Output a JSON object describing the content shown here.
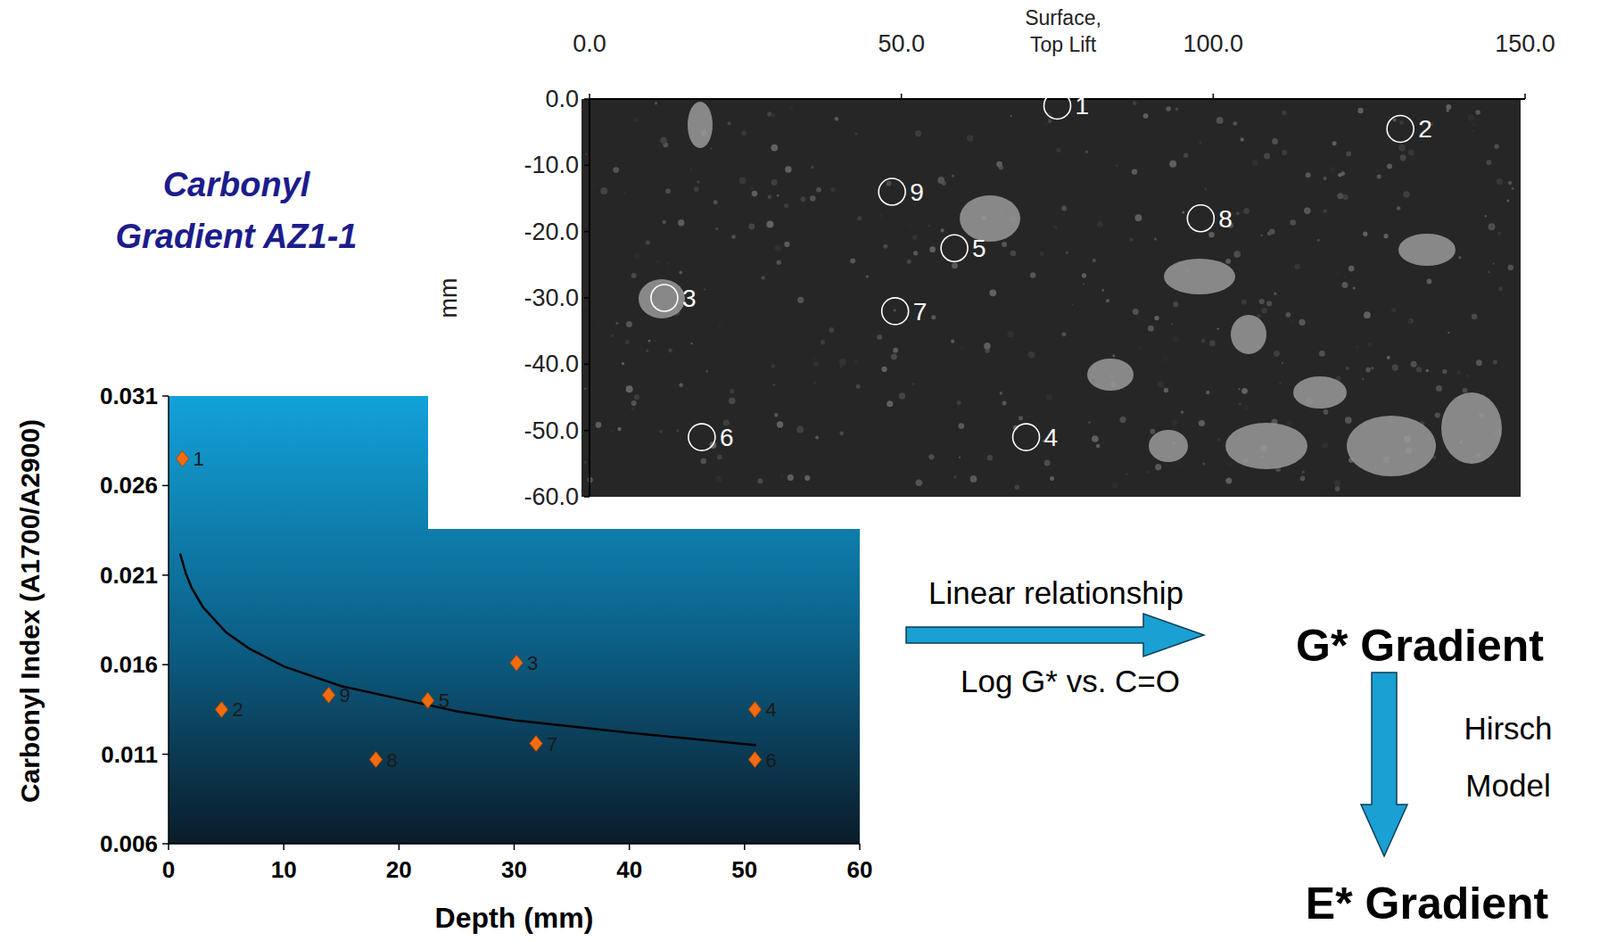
{
  "chart_data": [
    {
      "type": "scatter",
      "title": "Carbonyl Gradient AZ1-1",
      "x_label": "Depth (mm)",
      "y_label": "Carbonyl Index (A1700/A2900)",
      "xlim": [
        0,
        60
      ],
      "xticks": [
        0,
        10,
        20,
        30,
        40,
        50,
        60
      ],
      "ylim": [
        0.006,
        0.031
      ],
      "yticks": [
        0.006,
        0.011,
        0.016,
        0.021,
        0.026,
        0.031
      ],
      "series": [
        {
          "type": "scatter",
          "marker": "diamond",
          "color": "#f26b0f",
          "x": [
            1.2,
            4.6,
            30.2,
            50.9,
            22.5,
            50.9,
            31.9,
            18,
            13.9
          ],
          "values": [
            0.0275,
            0.0135,
            0.0161,
            0.0135,
            0.014,
            0.0107,
            0.0116,
            0.0107,
            0.0143
          ],
          "point_labels": [
            "1",
            "2",
            "3",
            "4",
            "5",
            "6",
            "7",
            "8",
            "9"
          ]
        },
        {
          "type": "line",
          "color": "#000000",
          "x": [
            1,
            1.5,
            2,
            3,
            5,
            7,
            10,
            15,
            20,
            25,
            30,
            40,
            51
          ],
          "values": [
            0.0222,
            0.0211,
            0.0203,
            0.0192,
            0.0178,
            0.0169,
            0.0159,
            0.0148,
            0.0141,
            0.0134,
            0.0129,
            0.0122,
            0.0115
          ]
        }
      ]
    },
    {
      "type": "scatter",
      "x_label": "Surface, Top Lift",
      "y_label": "mm",
      "xlim": [
        0,
        150
      ],
      "xticks": [
        {
          "value": 0,
          "label": "0.0"
        },
        {
          "value": 50,
          "label": "50.0"
        },
        {
          "value": 100,
          "label": "100.0"
        },
        {
          "value": 150,
          "label": "150.0"
        }
      ],
      "ylim": [
        -60,
        0
      ],
      "yticks": [
        {
          "value": 0,
          "label": "0.0"
        },
        {
          "value": -10,
          "label": "-10.0"
        },
        {
          "value": -20,
          "label": "-20.0"
        },
        {
          "value": -30,
          "label": "-30.0"
        },
        {
          "value": -40,
          "label": "-40.0"
        },
        {
          "value": -50,
          "label": "-50.0"
        },
        {
          "value": -60,
          "label": "-60.0"
        }
      ],
      "series": [
        {
          "marker": "circle",
          "color": "#ffffff",
          "x": [
            75,
            130,
            12,
            70,
            58.5,
            18,
            49,
            98,
            48.5
          ],
          "values": [
            -1,
            -4.5,
            -30,
            -51,
            -22.5,
            -51,
            -32,
            -18,
            -14
          ],
          "point_labels": [
            "1",
            "2",
            "3",
            "4",
            "5",
            "6",
            "7",
            "8",
            "9"
          ]
        }
      ]
    }
  ],
  "diagram": {
    "steps": [
      {
        "arrow_label": [
          "Linear relationship",
          "Log G* vs. C=O"
        ],
        "node": "G* Gradient"
      },
      {
        "arrow_label": [
          "Hirsch",
          "Model"
        ],
        "node": "E* Gradient"
      }
    ]
  }
}
